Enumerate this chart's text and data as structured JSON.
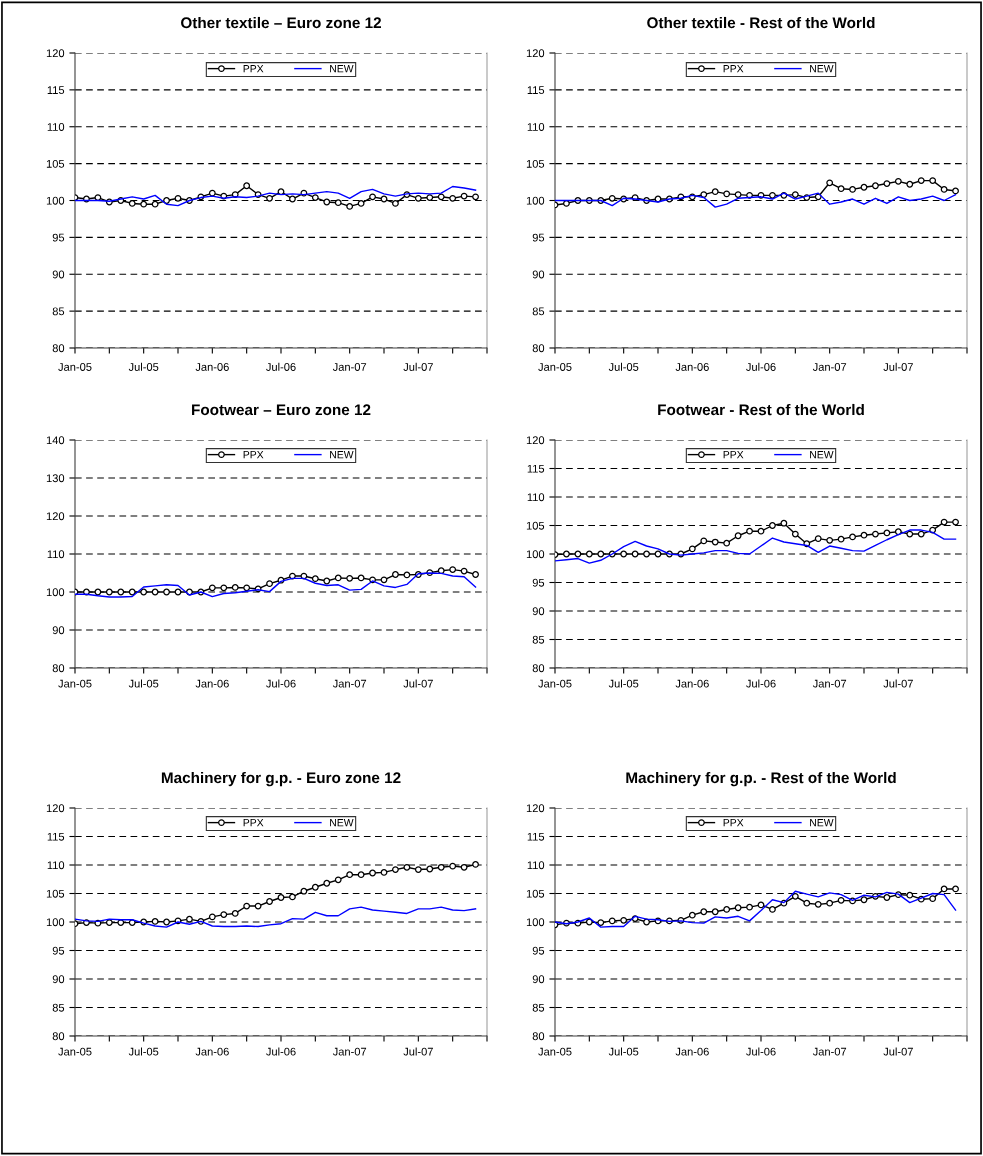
{
  "chart_data": [
    {
      "type": "line",
      "title": "Other textile – Euro zone 12",
      "categories": [
        "Jan-05",
        null,
        null,
        null,
        null,
        null,
        "Jul-05",
        null,
        null,
        null,
        null,
        null,
        "Jan-06",
        null,
        null,
        null,
        null,
        null,
        "Jul-06",
        null,
        null,
        null,
        null,
        null,
        "Jan-07",
        null,
        null,
        null,
        null,
        null,
        "Jul-07",
        null,
        null,
        null,
        null,
        null
      ],
      "ylim": [
        80,
        120
      ],
      "yticks": [
        80,
        85,
        90,
        95,
        100,
        105,
        110,
        115,
        120
      ],
      "grid": "y",
      "legend": "top",
      "series": [
        {
          "name": "PPX",
          "color": "#000000",
          "marker": "circle",
          "values": [
            100.4,
            100.2,
            100.4,
            99.8,
            100,
            99.6,
            99.5,
            99.5,
            100,
            100.3,
            100,
            100.5,
            101,
            100.6,
            100.8,
            102,
            100.8,
            100.3,
            101.2,
            100.2,
            101,
            100.4,
            99.8,
            99.7,
            99.2,
            99.6,
            100.5,
            100.2,
            99.6,
            100.8,
            100.3,
            100.4,
            100.5,
            100.3,
            100.6,
            100.5
          ]
        },
        {
          "name": "NEW",
          "color": "#0000ff",
          "marker": "none",
          "values": [
            100,
            100,
            100,
            99.9,
            100.2,
            100.5,
            100.2,
            100.7,
            99.5,
            99.3,
            100,
            100.4,
            100.6,
            100.3,
            100.5,
            100.4,
            100.6,
            101,
            100.8,
            100.9,
            100.8,
            101,
            101.2,
            101,
            100.3,
            101.2,
            101.5,
            100.9,
            100.6,
            100.9,
            101,
            100.9,
            101,
            101.9,
            101.7,
            101.4
          ]
        }
      ]
    },
    {
      "type": "line",
      "title": "Other textile - Rest of the World",
      "categories": [
        "Jan-05",
        null,
        null,
        null,
        null,
        null,
        "Jul-05",
        null,
        null,
        null,
        null,
        null,
        "Jan-06",
        null,
        null,
        null,
        null,
        null,
        "Jul-06",
        null,
        null,
        null,
        null,
        null,
        "Jan-07",
        null,
        null,
        null,
        null,
        null,
        "Jul-07",
        null,
        null,
        null,
        null,
        null
      ],
      "ylim": [
        80,
        120
      ],
      "yticks": [
        80,
        85,
        90,
        95,
        100,
        105,
        110,
        115,
        120
      ],
      "grid": "y",
      "legend": "top",
      "series": [
        {
          "name": "PPX",
          "color": "#000000",
          "marker": "circle",
          "values": [
            99.4,
            99.6,
            100,
            100,
            100,
            100.3,
            100.2,
            100.4,
            100,
            100.2,
            100.2,
            100.5,
            100.5,
            100.8,
            101.2,
            100.9,
            100.8,
            100.7,
            100.7,
            100.7,
            100.7,
            100.8,
            100.4,
            100.5,
            102.4,
            101.6,
            101.5,
            101.8,
            102,
            102.3,
            102.6,
            102.2,
            102.7,
            102.7,
            101.5,
            101.3
          ]
        },
        {
          "name": "NEW",
          "color": "#0000ff",
          "marker": "none",
          "values": [
            100,
            100,
            100,
            100,
            100,
            99.3,
            100.3,
            100.2,
            100,
            99.8,
            100.2,
            100.3,
            100.7,
            100.4,
            99.1,
            99.5,
            100.3,
            100.4,
            100.5,
            100.2,
            101,
            100.2,
            100.6,
            101,
            99.5,
            99.8,
            100.2,
            99.5,
            100.3,
            99.6,
            100.5,
            100,
            100.2,
            100.6,
            100,
            100.8
          ]
        }
      ]
    },
    {
      "type": "line",
      "title": "Footwear – Euro zone 12",
      "categories": [
        "Jan-05",
        null,
        null,
        null,
        null,
        null,
        "Jul-05",
        null,
        null,
        null,
        null,
        null,
        "Jan-06",
        null,
        null,
        null,
        null,
        null,
        "Jul-06",
        null,
        null,
        null,
        null,
        null,
        "Jan-07",
        null,
        null,
        null,
        null,
        null,
        "Jul-07",
        null,
        null,
        null,
        null,
        null
      ],
      "ylim": [
        80,
        140
      ],
      "yticks": [
        80,
        90,
        100,
        110,
        120,
        130,
        140
      ],
      "grid": "y",
      "legend": "top",
      "series": [
        {
          "name": "PPX",
          "color": "#000000",
          "marker": "circle",
          "values": [
            100,
            100,
            100,
            100,
            100,
            100,
            100,
            100,
            100,
            100,
            100,
            100,
            101.1,
            101.1,
            101.2,
            101.1,
            100.8,
            102.2,
            103.1,
            104.2,
            104.2,
            103.5,
            102.9,
            103.7,
            103.6,
            103.7,
            103.2,
            103.2,
            104.6,
            104.5,
            104.6,
            105.1,
            105.6,
            105.9,
            105.5,
            104.6
          ]
        },
        {
          "name": "NEW",
          "color": "#0000ff",
          "marker": "none",
          "values": [
            99.4,
            99.4,
            99,
            98.7,
            98.7,
            98.8,
            101.3,
            101.6,
            101.9,
            101.7,
            99.2,
            100,
            98.8,
            99.6,
            99.8,
            100.2,
            100.6,
            100.1,
            102.8,
            103.6,
            103.6,
            102.3,
            101.7,
            101.9,
            100.5,
            100.7,
            102.9,
            101.6,
            101.2,
            102,
            104.8,
            105,
            104.9,
            104.2,
            104,
            101.3
          ]
        }
      ]
    },
    {
      "type": "line",
      "title": "Footwear - Rest of the World",
      "categories": [
        "Jan-05",
        null,
        null,
        null,
        null,
        null,
        "Jul-05",
        null,
        null,
        null,
        null,
        null,
        "Jan-06",
        null,
        null,
        null,
        null,
        null,
        "Jul-06",
        null,
        null,
        null,
        null,
        null,
        "Jan-07",
        null,
        null,
        null,
        null,
        null,
        "Jul-07",
        null,
        null,
        null,
        null,
        null
      ],
      "ylim": [
        80,
        120
      ],
      "yticks": [
        80,
        85,
        90,
        95,
        100,
        105,
        110,
        115,
        120
      ],
      "grid": "y",
      "legend": "top",
      "series": [
        {
          "name": "PPX",
          "color": "#000000",
          "marker": "circle",
          "values": [
            99.9,
            100,
            100,
            100,
            100,
            100,
            100,
            100,
            100,
            100,
            100,
            100,
            100.9,
            102.3,
            102.1,
            101.9,
            103.2,
            104,
            104,
            105,
            105.4,
            103.5,
            101.8,
            102.7,
            102.4,
            102.6,
            103,
            103.3,
            103.5,
            103.7,
            103.9,
            103.5,
            103.5,
            104.2,
            105.6,
            105.6
          ]
        },
        {
          "name": "NEW",
          "color": "#0000ff",
          "marker": "none",
          "values": [
            98.8,
            99,
            99.2,
            98.4,
            98.9,
            100,
            101.3,
            102.2,
            101.4,
            100.9,
            100,
            99.8,
            100,
            100.2,
            100.6,
            100.6,
            100.1,
            100,
            101.4,
            102.8,
            102.1,
            101.8,
            101.5,
            100.3,
            101.4,
            101,
            100.6,
            100.5,
            101.5,
            102.5,
            103.4,
            104.2,
            104.2,
            103.8,
            102.6,
            102.6
          ]
        }
      ]
    },
    {
      "type": "line",
      "title": "Machinery for g.p. - Euro zone 12",
      "categories": [
        "Jan-05",
        null,
        null,
        null,
        null,
        null,
        "Jul-05",
        null,
        null,
        null,
        null,
        null,
        "Jan-06",
        null,
        null,
        null,
        null,
        null,
        "Jul-06",
        null,
        null,
        null,
        null,
        null,
        "Jan-07",
        null,
        null,
        null,
        null,
        null,
        "Jul-07",
        null,
        null,
        null,
        null,
        null
      ],
      "ylim": [
        80,
        120
      ],
      "yticks": [
        80,
        85,
        90,
        95,
        100,
        105,
        110,
        115,
        120
      ],
      "grid": "y",
      "legend": "top",
      "series": [
        {
          "name": "PPX",
          "color": "#000000",
          "marker": "circle",
          "values": [
            99.7,
            99.9,
            99.8,
            99.9,
            99.9,
            99.9,
            100,
            100.1,
            100,
            100.2,
            100.5,
            100.1,
            100.9,
            101.3,
            101.5,
            102.8,
            102.8,
            103.6,
            104.3,
            104.4,
            105.4,
            106.1,
            106.8,
            107.4,
            108.3,
            108.3,
            108.6,
            108.7,
            109.2,
            109.6,
            109.2,
            109.3,
            109.6,
            109.8,
            109.6,
            110.1
          ]
        },
        {
          "name": "NEW",
          "color": "#0000ff",
          "marker": "none",
          "values": [
            100.5,
            100.2,
            100.1,
            100.5,
            100.4,
            100.4,
            99.8,
            99.3,
            99.1,
            100,
            99.6,
            100.1,
            99.3,
            99.2,
            99.2,
            99.3,
            99.2,
            99.5,
            99.7,
            100.6,
            100.5,
            101.7,
            101.1,
            101.1,
            102.3,
            102.6,
            102.1,
            101.9,
            101.7,
            101.5,
            102.3,
            102.3,
            102.6,
            102.1,
            102,
            102.3
          ]
        }
      ]
    },
    {
      "type": "line",
      "title": "Machinery for g.p. - Rest of the World",
      "categories": [
        "Jan-05",
        null,
        null,
        null,
        null,
        null,
        "Jul-05",
        null,
        null,
        null,
        null,
        null,
        "Jan-06",
        null,
        null,
        null,
        null,
        null,
        "Jul-06",
        null,
        null,
        null,
        null,
        null,
        "Jan-07",
        null,
        null,
        null,
        null,
        null,
        "Jul-07",
        null,
        null,
        null,
        null,
        null
      ],
      "ylim": [
        80,
        120
      ],
      "yticks": [
        80,
        85,
        90,
        95,
        100,
        105,
        110,
        115,
        120
      ],
      "grid": "y",
      "legend": "top",
      "series": [
        {
          "name": "PPX",
          "color": "#000000",
          "marker": "circle",
          "values": [
            99.5,
            99.8,
            99.8,
            100,
            99.9,
            100.2,
            100.3,
            100.6,
            100,
            100.2,
            100.2,
            100.3,
            101.2,
            101.8,
            101.8,
            102.2,
            102.5,
            102.6,
            103,
            102.2,
            103.3,
            104.5,
            103.3,
            103.1,
            103.3,
            103.8,
            103.7,
            103.9,
            104.5,
            104.3,
            104.8,
            104.7,
            104,
            104.1,
            105.8,
            105.8
          ]
        },
        {
          "name": "NEW",
          "color": "#0000ff",
          "marker": "none",
          "values": [
            100,
            99.7,
            100,
            100.7,
            99.1,
            99.2,
            99.2,
            101,
            100.5,
            100.4,
            100.1,
            100.2,
            99.9,
            99.8,
            100.9,
            100.7,
            101,
            100.2,
            102,
            103.9,
            103.4,
            105.4,
            104.9,
            104.4,
            105.1,
            104.8,
            103.8,
            104.7,
            104.4,
            105.2,
            104.9,
            103.4,
            104.2,
            105,
            104.8,
            102.1
          ]
        }
      ]
    }
  ]
}
